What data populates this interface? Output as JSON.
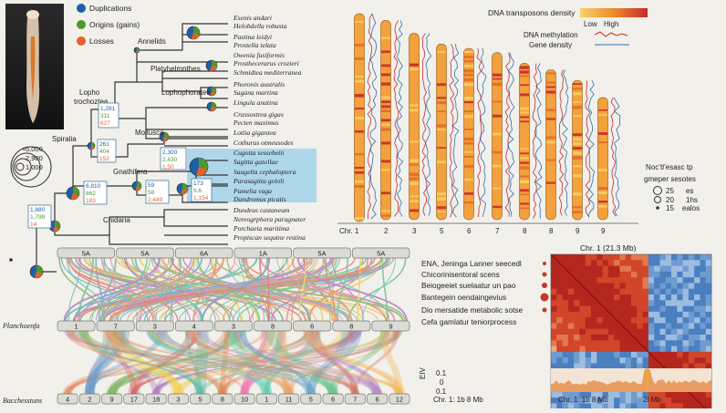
{
  "legend": {
    "duplications": "Duplications",
    "origins": "Origins (gains)",
    "losses": "Losses",
    "colors": {
      "duplications": "#1f5fa8",
      "origins": "#4c9a2a",
      "losses": "#e0642a"
    }
  },
  "size_legend": [
    "5,000",
    "2,900",
    "1,000"
  ],
  "size_legend_right": {
    "title_lines": [
      "Noc’tl’esasc tp",
      "gmeper sesotes"
    ],
    "rows": [
      {
        "value": "25",
        "label": "es"
      },
      {
        "value": "20",
        "label": "1hs"
      },
      {
        "value": "15",
        "label": "ealos"
      }
    ]
  },
  "clades": [
    "Annelida",
    "Platyhelminthes",
    "Lophophoratea",
    "Lopho trochozoa",
    "Mollusca",
    "Gnathifera",
    "Spiralia",
    "Cnidaria"
  ],
  "clade_labels": {
    "annelida": "Annelids",
    "platyhelminthes": "Platyhelmnthes",
    "lophophoratea": "Lophophoratee",
    "lopho": "Lopho",
    "trochozoa": "trochoztea",
    "mollusca": "Mollusca",
    "gnathifera": "Gnathifera",
    "spiralia": "Spiralia",
    "cnidaria": "Cnidaria"
  },
  "species": [
    "Esenis andari",
    "Helobdella robusta",
    "Pastina leidyi",
    "Prostella telata",
    "Owenia fusiformis",
    "Prosthecerarus crozieri",
    "Schmidtea mediterranea",
    "Phoronis australis",
    "Sagana martina",
    "Lingula anatina",
    "Crassostrea gigas",
    "Pecten maximus",
    "Lottia gigantea",
    "Cothurus otmeusodes",
    "Cugotta sessebetii",
    "Sagitta gazellae",
    "Saagella cephaloptera",
    "Parasagitta gololi",
    "Pamelia vaga",
    "Dandromus picatis",
    "Dundeus castaneum",
    "Nereogrphora paragnater",
    "Porchaeia maritima",
    "Propiscan sequtne restina"
  ],
  "node_counts": [
    {
      "a": "1,281",
      "b": "311",
      "c": "627"
    },
    {
      "a": "261",
      "b": "404",
      "c": "152"
    },
    {
      "a": "6,810",
      "b": "862",
      "c": "183"
    },
    {
      "a": "59",
      "b": "58",
      "c": "2,449"
    },
    {
      "a": "1,880",
      "b": "1,799",
      "c": "14"
    }
  ],
  "box_counts": {
    "a": "2,300",
    "b": "2,430",
    "c": "1,50"
  },
  "right_counts": {
    "a": "173",
    "b": "9.6",
    "c": "1,154"
  },
  "chromosome_legend": {
    "te_density": "DNA transposons density",
    "low": "Low",
    "high": "High",
    "methylation": "DNA methylation",
    "gene_density": "Gene density"
  },
  "chromosomes": {
    "labels": [
      "Chr. 1",
      "2",
      "3",
      "5",
      "6",
      "7",
      "8",
      "8",
      "9",
      "9"
    ],
    "length_fraction": [
      0.97,
      0.93,
      0.87,
      0.82,
      0.8,
      0.78,
      0.73,
      0.7,
      0.65,
      0.57
    ]
  },
  "synteny": {
    "top_label": "",
    "top_segments": [
      "5A",
      "5A",
      "6A",
      "1A",
      "5A",
      "5A"
    ],
    "mid_label": "Planchoenfa",
    "mid_segments": [
      "1",
      "7",
      "3",
      "4",
      "3",
      "8",
      "6",
      "8",
      "9"
    ],
    "bottom_label": "Bacchesstuns",
    "bottom_segments": [
      "4",
      "2",
      "9",
      "17",
      "18",
      "3",
      "5",
      "8",
      "10",
      "1",
      "11",
      "5",
      "6",
      "7",
      "6",
      "12"
    ]
  },
  "go_terms": [
    "ENA, Jeninga Lanner seecedl",
    "Chicorinisentoral scens",
    "Beiogeeiet suelaatur un pao",
    "Bantegein oendaingevius",
    "Dio mersatide metabolic sotse",
    "Cefa gamlatur teniorprocess"
  ],
  "heatmap": {
    "title": "Chr. 1 (21.3 Mb)",
    "x_axis_left": "Chr. 1: 1b 8 Mb",
    "x_axis_right": "Chr. 1: 1b 8 Mb",
    "extra_tick": "2l Mb",
    "y_ticks": [
      "0.1",
      "0",
      "0.1"
    ],
    "y_axis_label": "EIV"
  }
}
